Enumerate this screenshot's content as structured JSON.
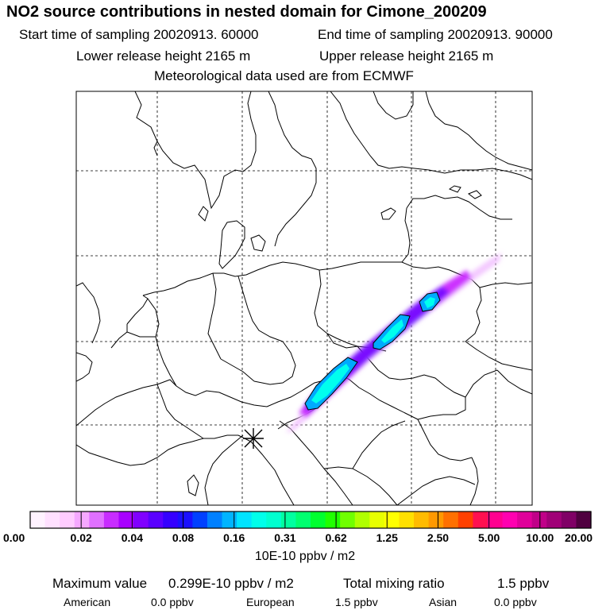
{
  "header": {
    "title": "NO2 source contributions in nested domain for Cimone_200209",
    "start_label": "Start time of sampling 20020913. 60000",
    "end_label": "End time of sampling 20020913. 90000",
    "lower_label": "Lower release height 2165 m",
    "upper_label": "Upper release height 2165 m",
    "met_label": "Meteorological data used are from ECMWF"
  },
  "map": {
    "source_marker": "asterisk-icon",
    "plume_colors": [
      "#f0b0ff",
      "#cc33ff",
      "#7700ff",
      "#00aaff",
      "#00ffee"
    ]
  },
  "colorbar": {
    "colors": [
      "#fff2ff",
      "#ffe0ff",
      "#ffccff",
      "#f5a8ff",
      "#e070ff",
      "#c82cff",
      "#a800ff",
      "#8000ff",
      "#5a00ff",
      "#3500ff",
      "#1a10ff",
      "#0040ff",
      "#0080ff",
      "#00b4ff",
      "#00e4ff",
      "#00ffea",
      "#00ffd0",
      "#00ffa0",
      "#00ff70",
      "#00ff30",
      "#20ff00",
      "#70ff00",
      "#b0ff00",
      "#e8ff00",
      "#ffff00",
      "#ffe000",
      "#ffbb00",
      "#ff9900",
      "#ff7000",
      "#ff4000",
      "#ff1050",
      "#ff0090",
      "#ff00b0",
      "#e0009a",
      "#c00088",
      "#a00077",
      "#800066",
      "#500040"
    ],
    "tick_labels": [
      "0.00",
      "0.02",
      "0.04",
      "0.08",
      "0.16",
      "0.31",
      "0.62",
      "1.25",
      "2.50",
      "5.00",
      "10.00",
      "20.00"
    ],
    "unit_label": "10E-10 ppbv / m2"
  },
  "stats": {
    "max_label": "Maximum value",
    "max_value": "0.299E-10 ppbv / m2",
    "total_label": "Total mixing ratio",
    "total_value": "1.5 ppbv",
    "american_label": "American",
    "american_value": "0.0 ppbv",
    "european_label": "European",
    "european_value": "1.5 ppbv",
    "asian_label": "Asian",
    "asian_value": "0.0 ppbv"
  }
}
